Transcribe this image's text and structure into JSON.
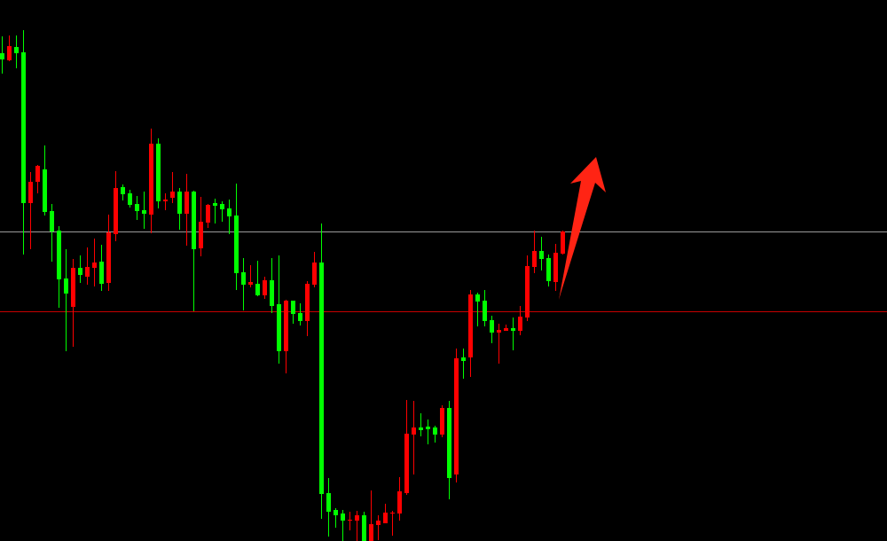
{
  "chart_data": {
    "type": "candlestick",
    "title": "",
    "xlabel": "",
    "ylabel": "",
    "axes_visible": false,
    "grid": false,
    "background": "#000000",
    "colors": {
      "down": "#00ff00",
      "up": "#ff0000",
      "arrow": "#ff2414"
    },
    "ylim": [
      0,
      610
    ],
    "candle_fields": [
      "open",
      "high",
      "low",
      "close"
    ],
    "candles": [
      [
        550,
        569,
        527,
        543
      ],
      [
        542,
        570,
        541,
        558
      ],
      [
        557,
        570,
        533,
        550
      ],
      [
        551,
        576,
        323,
        381
      ],
      [
        381,
        416,
        329,
        405
      ],
      [
        405,
        424,
        392,
        423
      ],
      [
        419,
        446,
        367,
        371
      ],
      [
        372,
        380,
        315,
        349
      ],
      [
        350,
        355,
        263,
        295
      ],
      [
        296,
        329,
        214,
        279
      ],
      [
        264,
        318,
        219,
        308
      ],
      [
        308,
        322,
        291,
        300
      ],
      [
        298,
        331,
        289,
        309
      ],
      [
        308,
        341,
        287,
        314
      ],
      [
        315,
        334,
        282,
        290
      ],
      [
        291,
        368,
        282,
        348
      ],
      [
        346,
        417,
        338,
        398
      ],
      [
        399,
        402,
        384,
        391
      ],
      [
        392,
        396,
        376,
        379
      ],
      [
        380,
        389,
        362,
        372
      ],
      [
        373,
        394,
        352,
        369
      ],
      [
        368,
        465,
        347,
        448
      ],
      [
        448,
        454,
        375,
        383
      ],
      [
        383,
        392,
        373,
        385
      ],
      [
        387,
        416,
        381,
        394
      ],
      [
        394,
        398,
        351,
        369
      ],
      [
        369,
        414,
        333,
        394
      ],
      [
        394,
        395,
        259,
        329
      ],
      [
        330,
        388,
        321,
        360
      ],
      [
        359,
        380,
        353,
        379
      ],
      [
        381,
        386,
        358,
        378
      ],
      [
        380,
        383,
        360,
        374
      ],
      [
        375,
        385,
        346,
        366
      ],
      [
        367,
        403,
        283,
        302
      ],
      [
        303,
        319,
        260,
        289
      ],
      [
        289,
        311,
        286,
        292
      ],
      [
        290,
        316,
        276,
        277
      ],
      [
        277,
        298,
        273,
        294
      ],
      [
        294,
        319,
        257,
        265
      ],
      [
        267,
        322,
        200,
        214
      ],
      [
        214,
        272,
        189,
        271
      ],
      [
        271,
        271,
        245,
        256
      ],
      [
        257,
        268,
        243,
        248
      ],
      [
        248,
        293,
        231,
        290
      ],
      [
        289,
        326,
        286,
        314
      ],
      [
        314,
        358,
        25,
        53
      ],
      [
        54,
        71,
        5,
        33
      ],
      [
        35,
        37,
        15,
        29
      ],
      [
        31,
        35,
        0,
        23
      ],
      [
        23,
        33,
        12,
        24
      ],
      [
        23,
        34,
        0,
        29
      ],
      [
        29,
        33,
        -10,
        -2
      ],
      [
        -5,
        57,
        -10,
        19
      ],
      [
        18,
        29,
        1,
        23
      ],
      [
        20,
        42,
        20,
        32
      ],
      [
        31,
        34,
        6,
        32
      ],
      [
        31,
        72,
        23,
        56
      ],
      [
        54,
        159,
        52,
        121
      ],
      [
        120,
        158,
        75,
        128
      ],
      [
        128,
        144,
        118,
        125
      ],
      [
        129,
        137,
        109,
        126
      ],
      [
        128,
        130,
        111,
        120
      ],
      [
        120,
        153,
        117,
        150
      ],
      [
        150,
        158,
        47,
        71
      ],
      [
        75,
        217,
        66,
        206
      ],
      [
        207,
        217,
        183,
        203
      ],
      [
        207,
        283,
        185,
        278
      ],
      [
        278,
        280,
        242,
        270
      ],
      [
        271,
        283,
        242,
        248
      ],
      [
        249,
        254,
        223,
        235
      ],
      [
        235,
        245,
        200,
        238
      ],
      [
        237,
        244,
        237,
        240
      ],
      [
        240,
        252,
        215,
        237
      ],
      [
        237,
        265,
        232,
        253
      ],
      [
        252,
        322,
        248,
        310
      ],
      [
        309,
        350,
        302,
        327
      ],
      [
        327,
        343,
        305,
        318
      ],
      [
        319,
        323,
        287,
        293
      ],
      [
        292,
        335,
        282,
        325
      ],
      [
        324,
        350,
        323,
        349
      ]
    ],
    "horizontal_lines": [
      {
        "level": 349,
        "color": "#9a9a9a"
      },
      {
        "level": 259,
        "color": "#c80000"
      }
    ],
    "annotations": [
      {
        "type": "arrow",
        "direction": "up-right",
        "color": "#ff2414"
      }
    ]
  }
}
